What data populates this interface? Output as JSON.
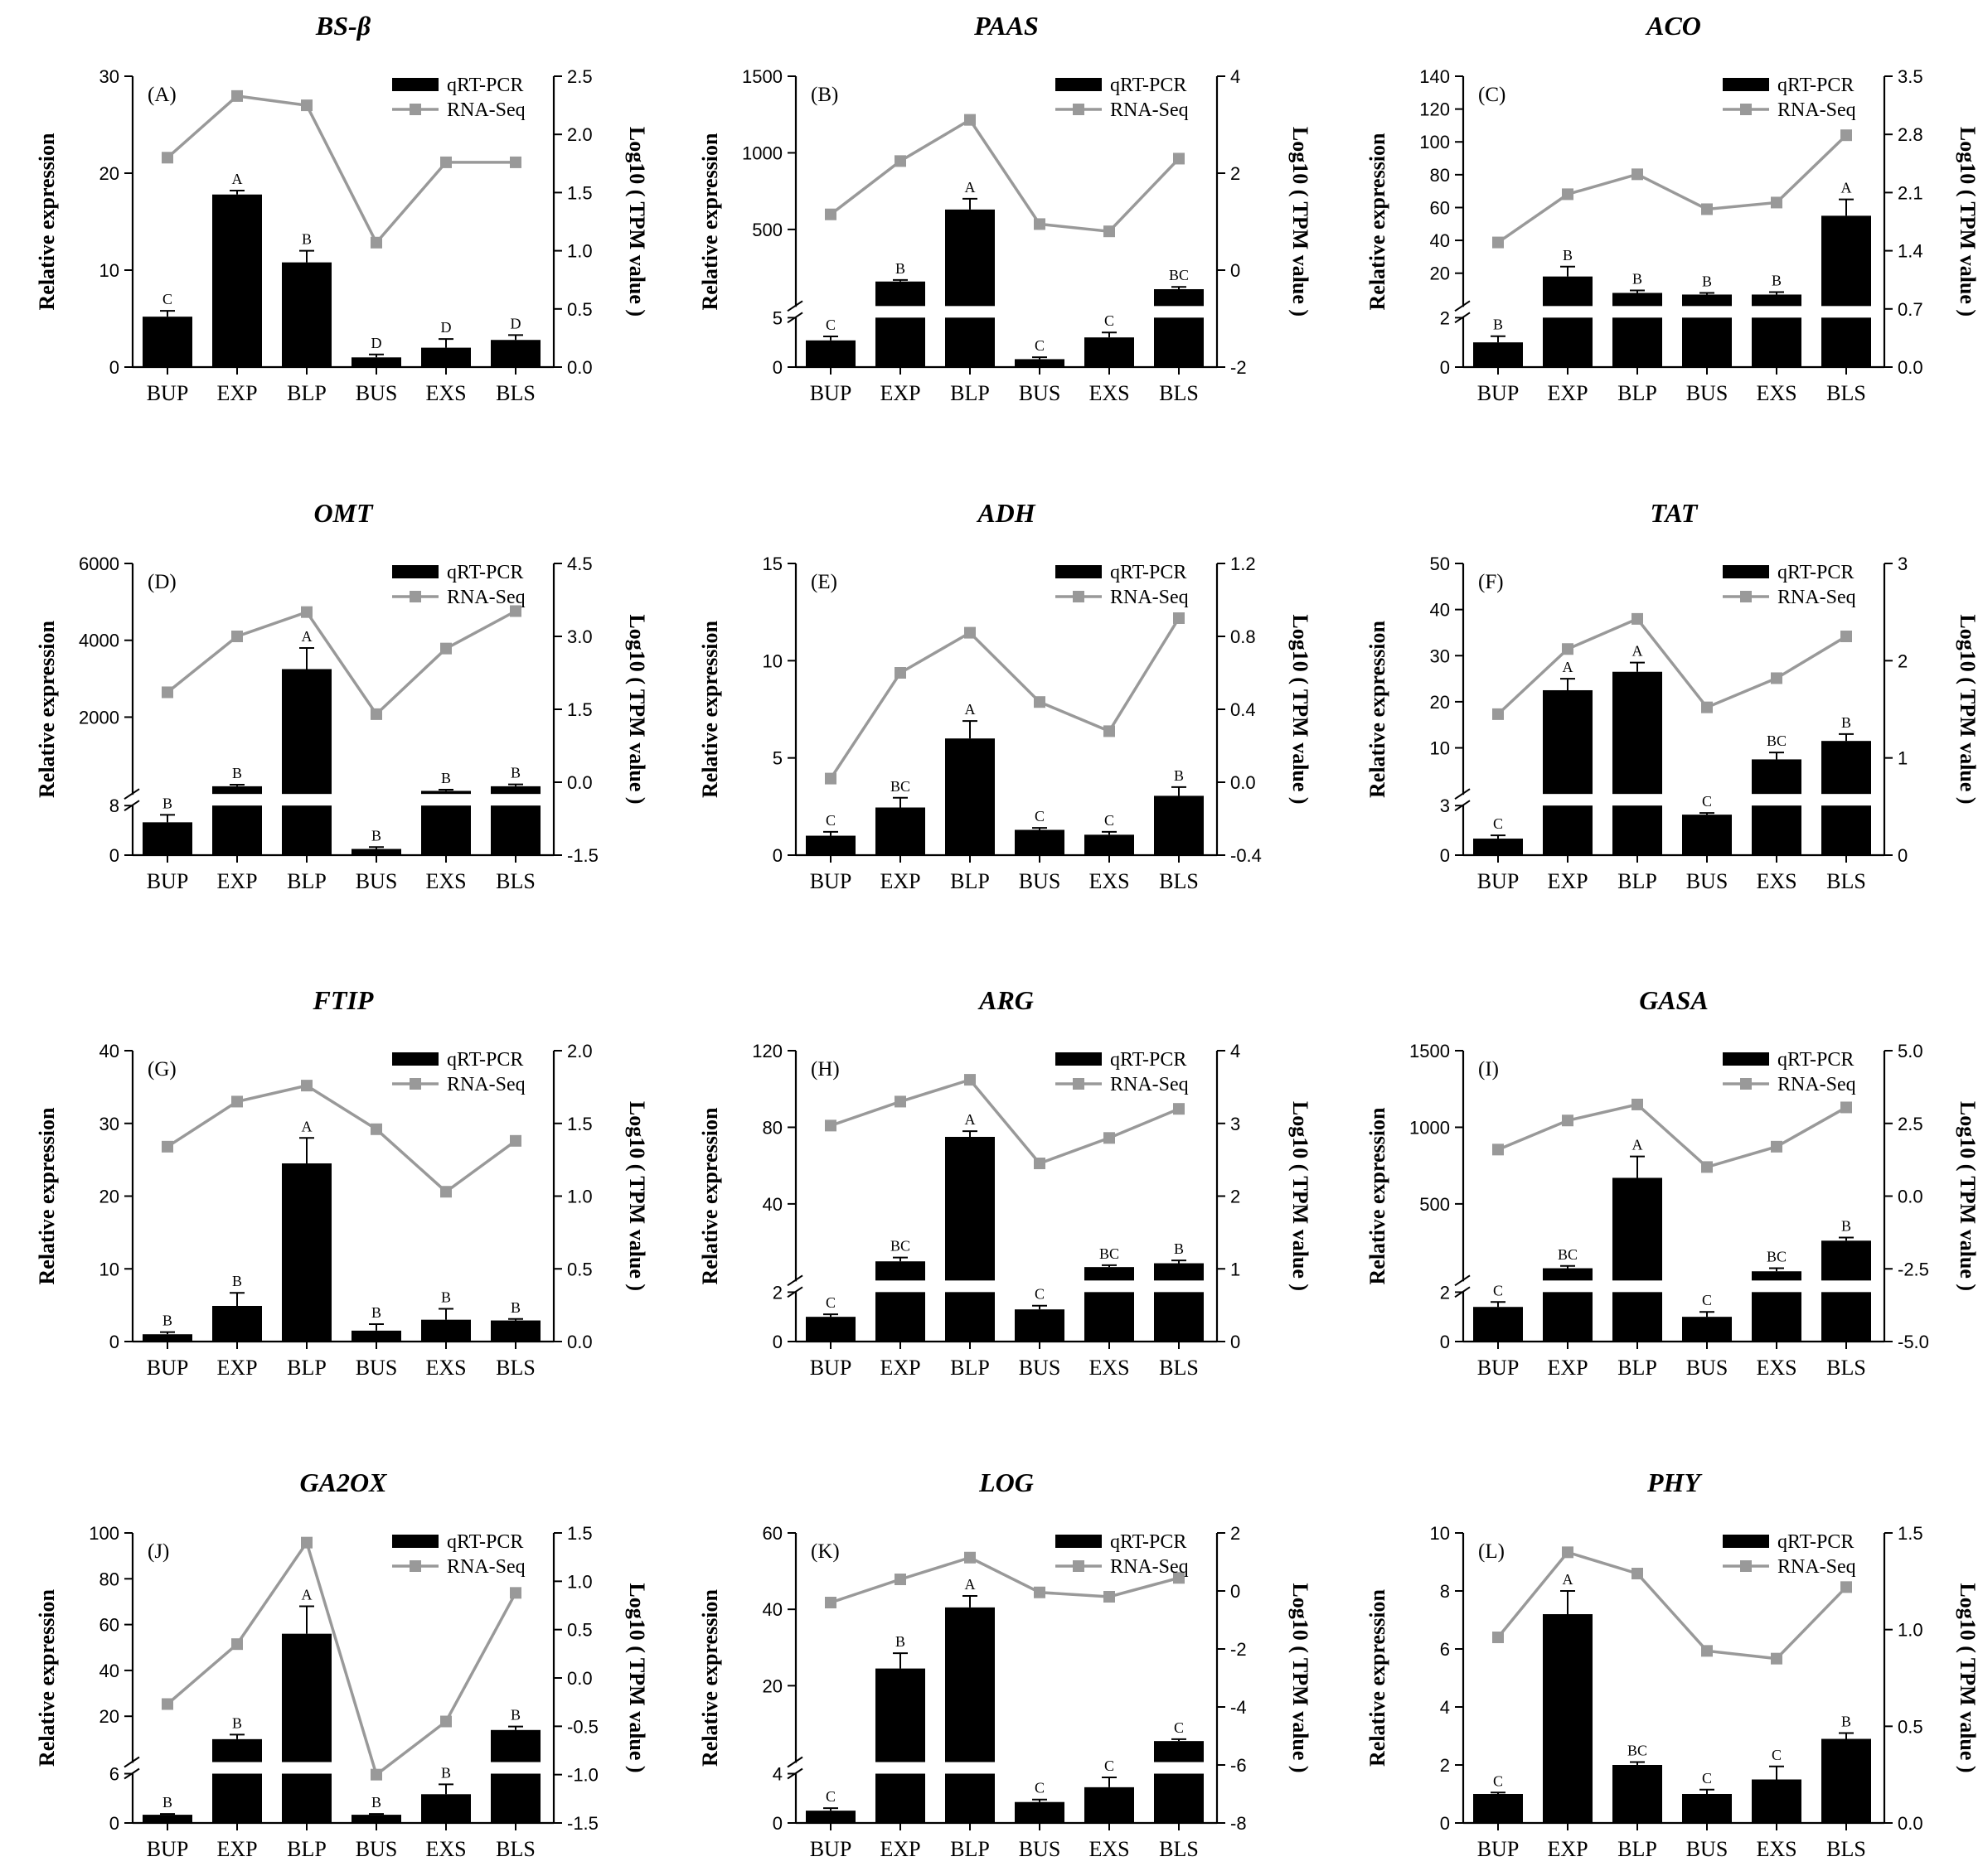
{
  "colors": {
    "bar": "#000000",
    "line": "#999999",
    "axis": "#000000",
    "background": "#ffffff"
  },
  "chart_data": [
    {
      "type": "bar",
      "title": "BS-β",
      "panel": "(A)",
      "categories": [
        "BUP",
        "EXP",
        "BLP",
        "BUS",
        "EXS",
        "BLS"
      ],
      "ylabel": "Relative expression",
      "y2label": "Log10 ( TPM value )",
      "legend": {
        "bar": "qRT-PCR",
        "line": "RNA-Seq"
      },
      "yticks": [
        0,
        10,
        20,
        30
      ],
      "y2ticks": [
        "0.0",
        "0.5",
        "1.0",
        "1.5",
        "2.0",
        "2.5"
      ],
      "ylim": [
        0,
        30
      ],
      "y2lim": [
        0,
        2.5
      ],
      "bar_values": [
        5.2,
        17.8,
        10.8,
        1.0,
        2.0,
        2.8
      ],
      "errors": [
        0.6,
        0.4,
        1.2,
        0.3,
        0.9,
        0.5
      ],
      "sig_letters": [
        "C",
        "A",
        "B",
        "D",
        "D",
        "D"
      ],
      "line_values": [
        1.8,
        2.33,
        2.25,
        1.07,
        1.76,
        1.76
      ]
    },
    {
      "type": "bar",
      "title": "PAAS",
      "panel": "(B)",
      "categories": [
        "BUP",
        "EXP",
        "BLP",
        "BUS",
        "EXS",
        "BLS"
      ],
      "ylabel": "Relative expression",
      "y2label": "Log10 ( TPM value )",
      "legend": {
        "bar": "qRT-PCR",
        "line": "RNA-Seq"
      },
      "y_break": {
        "at": 5,
        "lower_ticks": [
          0,
          5
        ],
        "upper_ticks": [
          500,
          1000,
          1500
        ],
        "upper_max": 1500
      },
      "y2ticks": [
        "-2",
        "0",
        "2",
        "4"
      ],
      "y2lim": [
        -2,
        4
      ],
      "bar_values": [
        2.7,
        160,
        630,
        0.8,
        3.0,
        110
      ],
      "errors": [
        0.4,
        10,
        70,
        0.2,
        0.5,
        15
      ],
      "sig_letters": [
        "C",
        "B",
        "A",
        "C",
        "C",
        "BC"
      ],
      "line_values": [
        1.15,
        2.25,
        3.1,
        0.95,
        0.8,
        2.3
      ]
    },
    {
      "type": "bar",
      "title": "ACO",
      "panel": "(C)",
      "categories": [
        "BUP",
        "EXP",
        "BLP",
        "BUS",
        "EXS",
        "BLS"
      ],
      "ylabel": "Relative expression",
      "y2label": "Log10 ( TPM value )",
      "legend": {
        "bar": "qRT-PCR",
        "line": "RNA-Seq"
      },
      "y_break": {
        "at": 2,
        "lower_ticks": [
          0,
          2
        ],
        "upper_ticks": [
          20,
          40,
          60,
          80,
          100,
          120,
          140
        ],
        "upper_max": 140
      },
      "y2ticks": [
        "0.0",
        "0.7",
        "1.4",
        "2.1",
        "2.8",
        "3.5"
      ],
      "y2lim": [
        0,
        3.5
      ],
      "bar_values": [
        1.0,
        18,
        8,
        7,
        7,
        55
      ],
      "errors": [
        0.25,
        6,
        1.5,
        1,
        1.5,
        10
      ],
      "sig_letters": [
        "B",
        "B",
        "B",
        "B",
        "B",
        "A"
      ],
      "line_values": [
        1.5,
        2.08,
        2.32,
        1.9,
        1.98,
        2.79
      ]
    },
    {
      "type": "bar",
      "title": "OMT",
      "panel": "(D)",
      "categories": [
        "BUP",
        "EXP",
        "BLP",
        "BUS",
        "EXS",
        "BLS"
      ],
      "ylabel": "Relative expression",
      "y2label": "Log10 ( TPM value )",
      "legend": {
        "bar": "qRT-PCR",
        "line": "RNA-Seq"
      },
      "y_break": {
        "at": 8,
        "lower_ticks": [
          0,
          8
        ],
        "upper_ticks": [
          2000,
          4000,
          6000
        ],
        "upper_max": 6000
      },
      "y2ticks": [
        "-1.5",
        "0.0",
        "1.5",
        "3.0",
        "4.5"
      ],
      "y2lim": [
        -1.5,
        4.5
      ],
      "bar_values": [
        5.3,
        200,
        3250,
        1.0,
        80,
        200
      ],
      "errors": [
        1.2,
        40,
        550,
        0.3,
        30,
        50
      ],
      "sig_letters": [
        "B",
        "B",
        "A",
        "B",
        "B",
        "B"
      ],
      "line_values": [
        1.85,
        3.0,
        3.5,
        1.4,
        2.75,
        3.52
      ]
    },
    {
      "type": "bar",
      "title": "ADH",
      "panel": "(E)",
      "categories": [
        "BUP",
        "EXP",
        "BLP",
        "BUS",
        "EXS",
        "BLS"
      ],
      "ylabel": "Relative expression",
      "y2label": "Log10 ( TPM value )",
      "legend": {
        "bar": "qRT-PCR",
        "line": "RNA-Seq"
      },
      "yticks": [
        0,
        5,
        10,
        15
      ],
      "y2ticks": [
        "-0.4",
        "0.0",
        "0.4",
        "0.8",
        "1.2"
      ],
      "ylim": [
        0,
        15
      ],
      "y2lim": [
        -0.4,
        1.2
      ],
      "bar_values": [
        1.0,
        2.45,
        6.0,
        1.3,
        1.05,
        3.05
      ],
      "errors": [
        0.2,
        0.5,
        0.9,
        0.1,
        0.15,
        0.45
      ],
      "sig_letters": [
        "C",
        "BC",
        "A",
        "C",
        "C",
        "B"
      ],
      "line_values": [
        0.02,
        0.6,
        0.82,
        0.44,
        0.28,
        0.9
      ]
    },
    {
      "type": "bar",
      "title": "TAT",
      "panel": "(F)",
      "categories": [
        "BUP",
        "EXP",
        "BLP",
        "BUS",
        "EXS",
        "BLS"
      ],
      "ylabel": "Relative expression",
      "y2label": "Log10 ( TPM value )",
      "legend": {
        "bar": "qRT-PCR",
        "line": "RNA-Seq"
      },
      "y_break": {
        "at": 3,
        "lower_ticks": [
          0,
          3
        ],
        "upper_ticks": [
          10,
          20,
          30,
          40,
          50
        ],
        "upper_max": 50
      },
      "y2ticks": [
        "0",
        "1",
        "2",
        "3"
      ],
      "y2lim": [
        0,
        3
      ],
      "bar_values": [
        1.0,
        22.5,
        26.5,
        2.45,
        7.5,
        11.5
      ],
      "errors": [
        0.2,
        2.5,
        2,
        0.1,
        1.5,
        1.5
      ],
      "sig_letters": [
        "C",
        "A",
        "A",
        "C",
        "BC",
        "B"
      ],
      "line_values": [
        1.45,
        2.12,
        2.43,
        1.52,
        1.82,
        2.25
      ]
    },
    {
      "type": "bar",
      "title": "FTIP",
      "panel": "(G)",
      "categories": [
        "BUP",
        "EXP",
        "BLP",
        "BUS",
        "EXS",
        "BLS"
      ],
      "ylabel": "Relative expression",
      "y2label": "Log10 ( TPM value )",
      "legend": {
        "bar": "qRT-PCR",
        "line": "RNA-Seq"
      },
      "yticks": [
        0,
        10,
        20,
        30,
        40
      ],
      "y2ticks": [
        "0.0",
        "0.5",
        "1.0",
        "1.5",
        "2.0"
      ],
      "ylim": [
        0,
        40
      ],
      "y2lim": [
        0,
        2.0
      ],
      "bar_values": [
        1.0,
        4.9,
        24.5,
        1.5,
        3.0,
        2.9
      ],
      "errors": [
        0.3,
        1.8,
        3.5,
        0.9,
        1.5,
        0.2
      ],
      "sig_letters": [
        "B",
        "B",
        "A",
        "B",
        "B",
        "B"
      ],
      "line_values": [
        1.34,
        1.65,
        1.76,
        1.46,
        1.03,
        1.38
      ]
    },
    {
      "type": "bar",
      "title": "ARG",
      "panel": "(H)",
      "categories": [
        "BUP",
        "EXP",
        "BLP",
        "BUS",
        "EXS",
        "BLS"
      ],
      "ylabel": "Relative expression",
      "y2label": "Log10 ( TPM value )",
      "legend": {
        "bar": "qRT-PCR",
        "line": "RNA-Seq"
      },
      "y_break": {
        "at": 2,
        "lower_ticks": [
          0,
          2
        ],
        "upper_ticks": [
          40,
          80,
          120
        ],
        "upper_max": 120
      },
      "y2ticks": [
        "0",
        "1",
        "2",
        "3",
        "4"
      ],
      "y2lim": [
        0,
        4
      ],
      "bar_values": [
        1.0,
        10,
        75,
        1.3,
        7,
        9
      ],
      "errors": [
        0.1,
        2,
        3,
        0.15,
        1,
        1.5
      ],
      "sig_letters": [
        "C",
        "BC",
        "A",
        "C",
        "BC",
        "B"
      ],
      "line_values": [
        2.97,
        3.3,
        3.6,
        2.45,
        2.8,
        3.2
      ]
    },
    {
      "type": "bar",
      "title": "GASA",
      "panel": "(I)",
      "categories": [
        "BUP",
        "EXP",
        "BLP",
        "BUS",
        "EXS",
        "BLS"
      ],
      "ylabel": "Relative expression",
      "y2label": "Log10 ( TPM value )",
      "legend": {
        "bar": "qRT-PCR",
        "line": "RNA-Seq"
      },
      "y_break": {
        "at": 2,
        "lower_ticks": [
          0,
          2
        ],
        "upper_ticks": [
          500,
          1000,
          1500
        ],
        "upper_max": 1500
      },
      "y2ticks": [
        "-5.0",
        "-2.5",
        "0.0",
        "2.5",
        "5.0"
      ],
      "y2lim": [
        -5,
        5
      ],
      "bar_values": [
        1.4,
        80,
        670,
        1.0,
        60,
        260
      ],
      "errors": [
        0.2,
        15,
        140,
        0.2,
        20,
        20
      ],
      "sig_letters": [
        "C",
        "BC",
        "A",
        "C",
        "BC",
        "B"
      ],
      "line_values": [
        1.6,
        2.6,
        3.15,
        1.0,
        1.7,
        3.05
      ]
    },
    {
      "type": "bar",
      "title": "GA2OX",
      "panel": "(J)",
      "categories": [
        "BUP",
        "EXP",
        "BLP",
        "BUS",
        "EXS",
        "BLS"
      ],
      "ylabel": "Relative expression",
      "y2label": "Log10 ( TPM value )",
      "legend": {
        "bar": "qRT-PCR",
        "line": "RNA-Seq"
      },
      "y_break": {
        "at": 6,
        "lower_ticks": [
          0,
          6
        ],
        "upper_ticks": [
          20,
          40,
          60,
          80,
          100
        ],
        "upper_max": 100
      },
      "y2ticks": [
        "-1.5",
        "-1.0",
        "-0.5",
        "0.0",
        "0.5",
        "1.0",
        "1.5"
      ],
      "y2lim": [
        -1.5,
        1.5
      ],
      "bar_values": [
        1.0,
        10,
        56,
        1.0,
        3.5,
        14
      ],
      "errors": [
        0.1,
        2,
        12,
        0.1,
        1.2,
        1.5
      ],
      "sig_letters": [
        "B",
        "B",
        "A",
        "B",
        "B",
        "B"
      ],
      "line_values": [
        -0.27,
        0.35,
        1.4,
        -1.0,
        -0.45,
        0.88
      ]
    },
    {
      "type": "bar",
      "title": "LOG",
      "panel": "(K)",
      "categories": [
        "BUP",
        "EXP",
        "BLP",
        "BUS",
        "EXS",
        "BLS"
      ],
      "ylabel": "Relative expression",
      "y2label": "Log10 ( TPM value )",
      "legend": {
        "bar": "qRT-PCR",
        "line": "RNA-Seq"
      },
      "y_break": {
        "at": 4,
        "lower_ticks": [
          0,
          4
        ],
        "upper_ticks": [
          20,
          40,
          60
        ],
        "upper_max": 60
      },
      "y2ticks": [
        "-8",
        "-6",
        "-4",
        "-2",
        "0",
        "2"
      ],
      "y2lim": [
        -8,
        2
      ],
      "bar_values": [
        1.0,
        24.5,
        40.5,
        1.7,
        2.9,
        5.5
      ],
      "errors": [
        0.2,
        4,
        3,
        0.2,
        0.8,
        0.5
      ],
      "sig_letters": [
        "C",
        "B",
        "A",
        "C",
        "C",
        "C"
      ],
      "line_values": [
        -0.4,
        0.4,
        1.15,
        -0.05,
        -0.2,
        0.45
      ]
    },
    {
      "type": "bar",
      "title": "PHY",
      "panel": "(L)",
      "categories": [
        "BUP",
        "EXP",
        "BLP",
        "BUS",
        "EXS",
        "BLS"
      ],
      "ylabel": "Relative expression",
      "y2label": "Log10 ( TPM value )",
      "legend": {
        "bar": "qRT-PCR",
        "line": "RNA-Seq"
      },
      "yticks": [
        0,
        2,
        4,
        6,
        8,
        10
      ],
      "y2ticks": [
        "0.0",
        "0.5",
        "1.0",
        "1.5"
      ],
      "ylim": [
        0,
        10
      ],
      "y2lim": [
        0,
        1.5
      ],
      "bar_values": [
        1.0,
        7.2,
        2.0,
        1.0,
        1.5,
        2.9
      ],
      "errors": [
        0.05,
        0.8,
        0.1,
        0.15,
        0.45,
        0.2
      ],
      "sig_letters": [
        "C",
        "A",
        "BC",
        "C",
        "C",
        "B"
      ],
      "line_values": [
        0.96,
        1.4,
        1.29,
        0.89,
        0.85,
        1.22
      ]
    }
  ]
}
